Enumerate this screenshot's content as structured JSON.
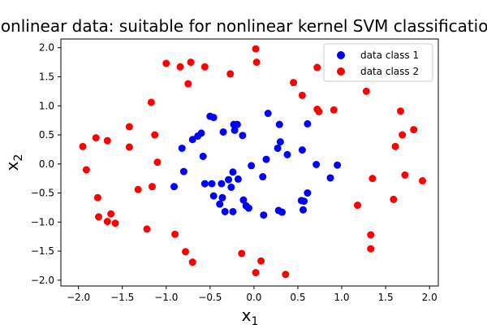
{
  "chart_data": {
    "type": "scatter",
    "title": "Nonlinear data: suitable for nonlinear kernel SVM classification",
    "xlabel": "x",
    "xlabel_sub": "1",
    "ylabel": "x",
    "ylabel_sub": "2",
    "xlim": [
      -2.2,
      2.1
    ],
    "ylim": [
      -2.1,
      2.15
    ],
    "xticks": [
      -2.0,
      -1.5,
      -1.0,
      -0.5,
      0.0,
      0.5,
      1.0,
      1.5,
      2.0
    ],
    "yticks": [
      -2.0,
      -1.5,
      -1.0,
      -0.5,
      0.0,
      0.5,
      1.0,
      1.5,
      2.0
    ],
    "xtick_labels": [
      "−2.0",
      "−1.5",
      "−1.0",
      "−0.5",
      "0.0",
      "0.5",
      "1.0",
      "1.5",
      "2.0"
    ],
    "ytick_labels": [
      "−2.0",
      "−1.5",
      "−1.0",
      "−0.5",
      "0.0",
      "0.5",
      "1.0",
      "1.5",
      "2.0"
    ],
    "grid": false,
    "legend_position": "top-right",
    "series": [
      {
        "name": "data class 1",
        "color": "#0000ff",
        "points": [
          [
            -0.5,
            0.82
          ],
          [
            -0.46,
            0.8
          ],
          [
            -0.6,
            0.53
          ],
          [
            -0.64,
            0.48
          ],
          [
            -0.7,
            0.42
          ],
          [
            -0.35,
            0.55
          ],
          [
            -0.23,
            0.68
          ],
          [
            -0.19,
            0.68
          ],
          [
            -0.22,
            0.58
          ],
          [
            -0.13,
            0.49
          ],
          [
            0.16,
            0.87
          ],
          [
            0.29,
            0.68
          ],
          [
            0.61,
            0.69
          ],
          [
            -0.82,
            0.27
          ],
          [
            -0.58,
            0.13
          ],
          [
            -0.8,
            -0.13
          ],
          [
            -0.91,
            -0.39
          ],
          [
            -0.56,
            -0.34
          ],
          [
            -0.48,
            -0.34
          ],
          [
            -0.46,
            -0.55
          ],
          [
            -0.36,
            -0.58
          ],
          [
            -0.39,
            -0.69
          ],
          [
            -0.37,
            -0.34
          ],
          [
            -0.29,
            -0.27
          ],
          [
            -0.26,
            -0.4
          ],
          [
            -0.24,
            -0.14
          ],
          [
            -0.18,
            -0.26
          ],
          [
            -0.33,
            -0.82
          ],
          [
            -0.24,
            -0.82
          ],
          [
            -0.12,
            -0.62
          ],
          [
            -0.09,
            -0.72
          ],
          [
            -0.06,
            -0.76
          ],
          [
            -0.03,
            -0.03
          ],
          [
            0.1,
            -0.22
          ],
          [
            0.11,
            -0.88
          ],
          [
            0.14,
            0.08
          ],
          [
            0.28,
            -0.8
          ],
          [
            0.32,
            -0.83
          ],
          [
            0.3,
            0.38
          ],
          [
            0.27,
            0.27
          ],
          [
            0.38,
            0.16
          ],
          [
            0.55,
            0.24
          ],
          [
            0.54,
            -0.63
          ],
          [
            0.57,
            -0.64
          ],
          [
            0.61,
            -0.5
          ],
          [
            0.56,
            -0.79
          ],
          [
            0.71,
            -0.01
          ],
          [
            0.87,
            -0.24
          ],
          [
            0.95,
            -0.02
          ]
        ]
      },
      {
        "name": "data class 2",
        "color": "#ff0000",
        "points": [
          [
            -1.95,
            0.3
          ],
          [
            -1.91,
            -0.1
          ],
          [
            -1.8,
            0.45
          ],
          [
            -1.78,
            -0.58
          ],
          [
            -1.77,
            -0.91
          ],
          [
            -1.67,
            0.4
          ],
          [
            -1.67,
            -0.99
          ],
          [
            -1.63,
            -0.86
          ],
          [
            -1.58,
            -1.02
          ],
          [
            -1.42,
            0.64
          ],
          [
            -1.42,
            0.29
          ],
          [
            -1.32,
            -0.44
          ],
          [
            -1.22,
            -1.12
          ],
          [
            -1.17,
            1.06
          ],
          [
            -1.16,
            -0.39
          ],
          [
            -1.13,
            0.5
          ],
          [
            -1.1,
            0.03
          ],
          [
            -1.0,
            1.73
          ],
          [
            -0.9,
            -1.21
          ],
          [
            -0.84,
            1.67
          ],
          [
            -0.78,
            -1.51
          ],
          [
            -0.75,
            1.38
          ],
          [
            -0.72,
            1.75
          ],
          [
            -0.7,
            -1.69
          ],
          [
            -0.56,
            1.67
          ],
          [
            -0.27,
            1.55
          ],
          [
            -0.14,
            -1.54
          ],
          [
            0.02,
            1.98
          ],
          [
            0.03,
            1.75
          ],
          [
            0.02,
            -1.87
          ],
          [
            0.08,
            -1.67
          ],
          [
            0.36,
            -1.9
          ],
          [
            0.45,
            1.4
          ],
          [
            0.55,
            1.18
          ],
          [
            0.72,
            1.66
          ],
          [
            0.72,
            0.94
          ],
          [
            0.74,
            0.9
          ],
          [
            0.91,
            0.93
          ],
          [
            1.18,
            -0.71
          ],
          [
            1.28,
            1.25
          ],
          [
            1.33,
            -1.22
          ],
          [
            1.33,
            -1.46
          ],
          [
            1.35,
            -0.25
          ],
          [
            1.59,
            -0.61
          ],
          [
            1.61,
            0.3
          ],
          [
            1.67,
            0.91
          ],
          [
            1.69,
            0.5
          ],
          [
            1.72,
            -0.19
          ],
          [
            1.82,
            0.59
          ],
          [
            1.92,
            -0.29
          ]
        ]
      }
    ]
  }
}
